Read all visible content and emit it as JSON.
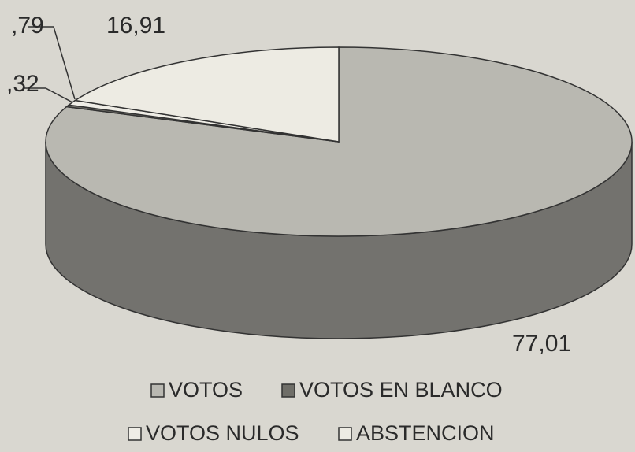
{
  "chart_data": {
    "type": "pie3d",
    "categories": [
      "VOTOS",
      "VOTOS EN BLANCO",
      "VOTOS NULOS",
      "ABSTENCION"
    ],
    "values": [
      77.01,
      0.32,
      0.79,
      16.91
    ],
    "value_labels": [
      "77,01",
      ",32",
      ",79",
      "16,91"
    ],
    "colors": [
      "#b9b8b1",
      "#6f6e68",
      "#efede6",
      "#edebe3"
    ],
    "legend": "bottom"
  }
}
